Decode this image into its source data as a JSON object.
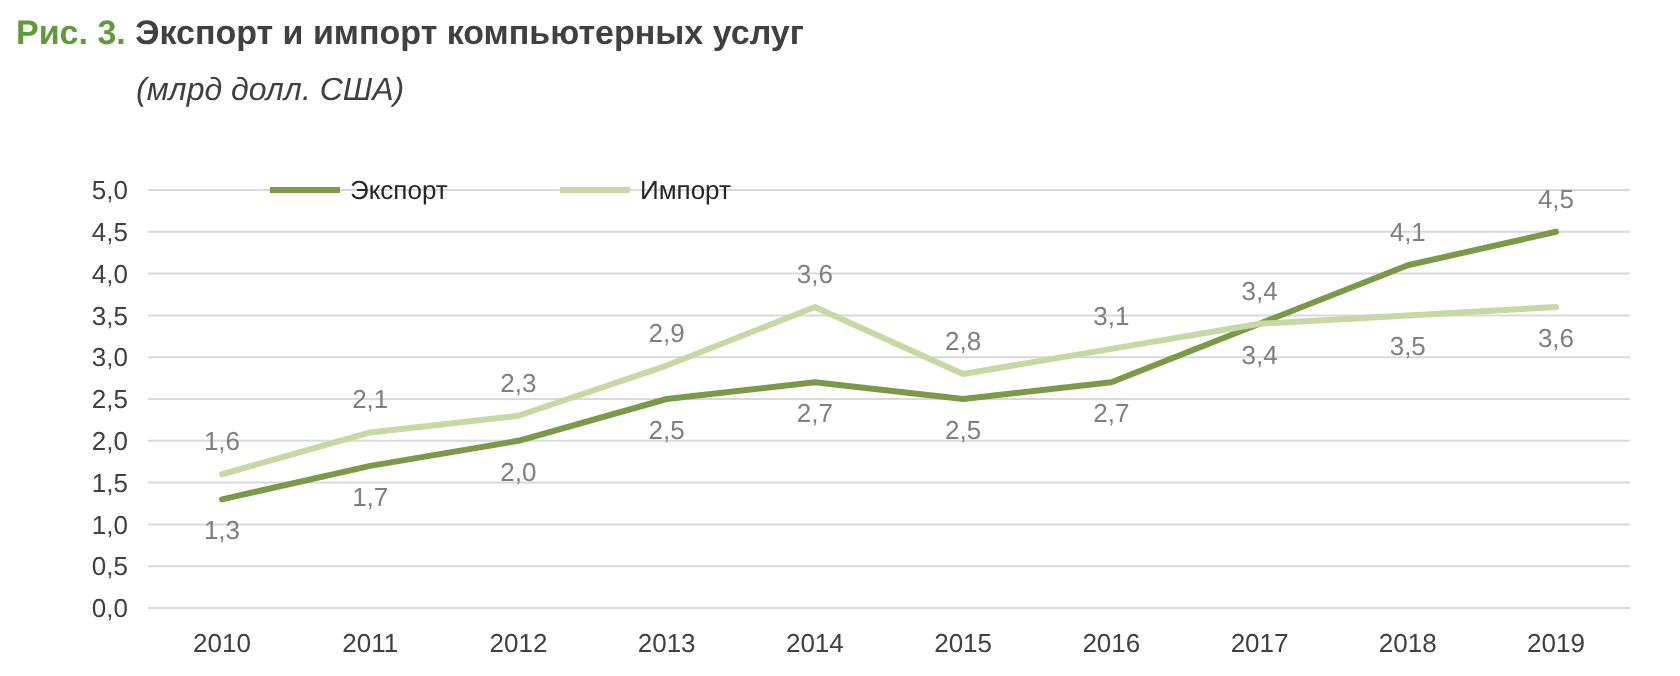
{
  "chart_data": {
    "type": "line",
    "title": "Рис. 3. Экспорт и импорт компьютерных услуг",
    "subtitle": "(млрд долл. США)",
    "categories": [
      "2010",
      "2011",
      "2012",
      "2013",
      "2014",
      "2015",
      "2016",
      "2017",
      "2018",
      "2019"
    ],
    "series": [
      {
        "name": "Экспорт",
        "color": "#7a9a47",
        "values": [
          1.3,
          1.7,
          2.0,
          2.5,
          2.7,
          2.5,
          2.7,
          3.4,
          4.1,
          4.5
        ],
        "value_labels": [
          "1,3",
          "1,7",
          "2,0",
          "2,5",
          "2,7",
          "2,5",
          "2,7",
          "3,4",
          "4,1",
          "4,5"
        ]
      },
      {
        "name": "Импорт",
        "color": "#c6d9a4",
        "values": [
          1.6,
          2.1,
          2.3,
          2.9,
          3.6,
          2.8,
          3.1,
          3.4,
          3.5,
          3.6
        ],
        "value_labels": [
          "1,6",
          "2,1",
          "2,3",
          "2,9",
          "3,6",
          "2,8",
          "3,1",
          "3,4",
          "3,5",
          "3,6"
        ]
      }
    ],
    "ylim": [
      0,
      5
    ],
    "yticks": [
      {
        "value": 0,
        "label": "0,0"
      },
      {
        "value": 0.5,
        "label": "0,5"
      },
      {
        "value": 1,
        "label": "1,0"
      },
      {
        "value": 1.5,
        "label": "1,5"
      },
      {
        "value": 2,
        "label": "2,0"
      },
      {
        "value": 2.5,
        "label": "2,5"
      },
      {
        "value": 3,
        "label": "3,0"
      },
      {
        "value": 3.5,
        "label": "3,5"
      },
      {
        "value": 4,
        "label": "4,0"
      },
      {
        "value": 4.5,
        "label": "4,5"
      },
      {
        "value": 5,
        "label": "5,0"
      }
    ],
    "grid": "y",
    "legend": "top left",
    "marker": "none",
    "line_style": "solid"
  }
}
